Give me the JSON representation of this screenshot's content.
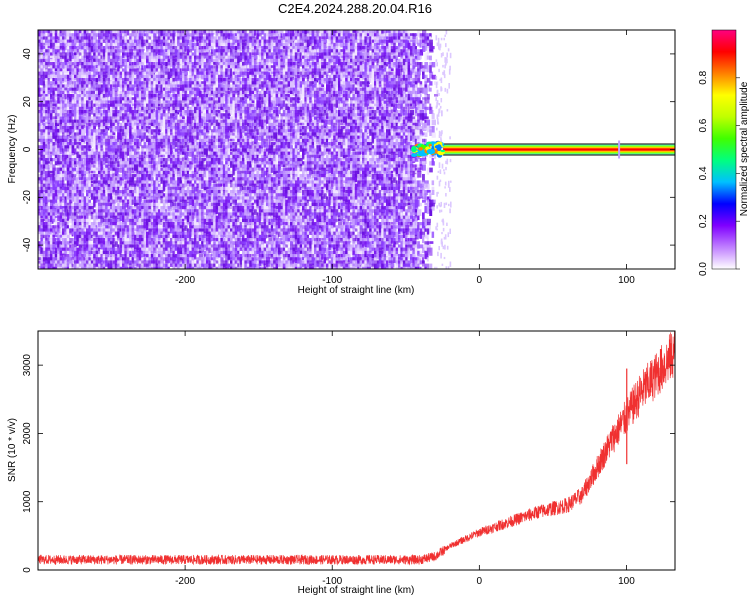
{
  "title": "C2E4.2024.288.20.04.R16",
  "chart_data": [
    {
      "type": "heatmap",
      "panel": "spectrogram",
      "xlabel": "Height of straight line (km)",
      "ylabel": "Frequency (Hz)",
      "xlim": [
        -300,
        133
      ],
      "ylim": [
        -50,
        50
      ],
      "xticks": [
        -200,
        -100,
        0,
        100
      ],
      "yticks": [
        -40,
        -20,
        0,
        20,
        40
      ],
      "noise_region_x": [
        -300,
        -30
      ],
      "carrier": {
        "x_start": -45,
        "x_end": 133,
        "frequency": 0,
        "amplitude": 1.0
      },
      "colorbar": {
        "label": "Normalized spectral amplitude",
        "range": [
          0,
          1
        ],
        "ticks": [
          "0.0",
          "0.2",
          "0.4",
          "0.6",
          "0.8"
        ],
        "colors": [
          "#ffffff",
          "#c080ff",
          "#7f00ff",
          "#0000ff",
          "#00c0ff",
          "#00ff80",
          "#40ff00",
          "#c0ff00",
          "#ffff00",
          "#ff8000",
          "#ff0000",
          "#ff0080"
        ]
      }
    },
    {
      "type": "line",
      "panel": "snr",
      "xlabel": "Height of straight line (km)",
      "ylabel": "SNR (10 * v/v)",
      "xlim": [
        -300,
        133
      ],
      "ylim": [
        0,
        3500
      ],
      "xticks": [
        -200,
        -100,
        0,
        100
      ],
      "yticks": [
        0,
        1000,
        2000,
        3000
      ],
      "color": "#f03030",
      "series": [
        {
          "x": [
            -300,
            -200,
            -100,
            -40,
            -30,
            -20,
            -10,
            0,
            20,
            40,
            60,
            70,
            80,
            90,
            100,
            110,
            120,
            133
          ],
          "y": [
            150,
            150,
            150,
            150,
            200,
            350,
            450,
            550,
            700,
            850,
            950,
            1100,
            1500,
            1900,
            2250,
            2600,
            2850,
            3200
          ]
        }
      ]
    }
  ]
}
